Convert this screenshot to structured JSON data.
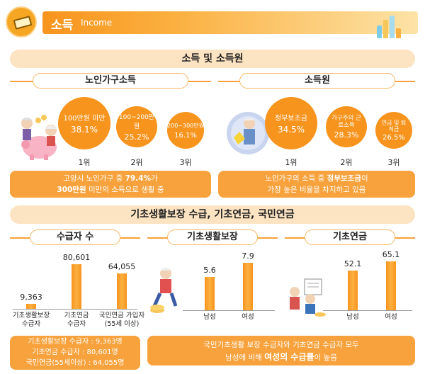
{
  "header": {
    "title": "소득",
    "subtitle": "Income"
  },
  "section1": {
    "title": "소득 및 소득원",
    "household_income": {
      "title": "노인가구소득",
      "items": [
        {
          "label": "100만원 미만",
          "value": "38.1%",
          "rank": "1위"
        },
        {
          "label": "100~200만원",
          "value": "25.2%",
          "rank": "2위"
        },
        {
          "label": "200~300만원",
          "value": "16.1%",
          "rank": "3위"
        }
      ],
      "note_line1_prefix": "고양시 노인가구 중 ",
      "note_line1_value": "79.4%",
      "note_line1_suffix": "가",
      "note_line2_value": "300만원",
      "note_line2_suffix": " 미만의 소득으로 생활 중"
    },
    "income_source": {
      "title": "소득원",
      "items": [
        {
          "label": "정부보조금",
          "value": "34.5%",
          "rank": "1위"
        },
        {
          "label": "가구주의 근로소득",
          "value": "28.3%",
          "rank": "2위"
        },
        {
          "label": "연금 및 퇴직금",
          "value": "26.5%",
          "rank": "3위"
        }
      ],
      "note_line1_prefix": "노인가구의 소득 중 ",
      "note_line1_value": "정부보조금",
      "note_line1_suffix": "이",
      "note_line2": "가장 높은 비율을 차지하고 있음"
    }
  },
  "section2": {
    "title": "기초생활보장 수급, 기초연금, 국민연금",
    "recipients": {
      "title": "수급자 수",
      "bars": [
        {
          "value": "9,363",
          "label1": "기초생활보장",
          "label2": "수급자",
          "label3": ""
        },
        {
          "value": "80,601",
          "label1": "기초연금",
          "label2": "수급자",
          "label3": ""
        },
        {
          "value": "64,055",
          "label1": "국민연금 가입자",
          "label2": "(55세 이상)",
          "label3": ""
        }
      ],
      "note": [
        "기초생활보장 수급자 : 9,363명",
        "기초연금 수급자 : 80,601명",
        "국민연금(55세이상) : 64,055명"
      ]
    },
    "basic_living": {
      "title": "기초생활보장",
      "bars": [
        {
          "value": "5.6",
          "label": "남성"
        },
        {
          "value": "7.9",
          "label": "여성"
        }
      ]
    },
    "basic_pension": {
      "title": "기초연금",
      "bars": [
        {
          "value": "52.1",
          "label": "남성"
        },
        {
          "value": "65.1",
          "label": "여성"
        }
      ]
    },
    "note2_line1": "국민기초생활 보장 수급자와 기초연금 수급자 모두",
    "note2_line2_prefix": "남성에 비해 ",
    "note2_line2_value": "여성의 수급률",
    "note2_line2_suffix": "이 높음"
  },
  "chart_data": [
    {
      "type": "bar",
      "title": "수급자 수",
      "categories": [
        "기초생활보장 수급자",
        "기초연금 수급자",
        "국민연금 가입자 (55세 이상)"
      ],
      "values": [
        9363,
        80601,
        64055
      ],
      "ylim": [
        0,
        90000
      ]
    },
    {
      "type": "bar",
      "title": "기초생활보장",
      "categories": [
        "남성",
        "여성"
      ],
      "values": [
        5.6,
        7.9
      ],
      "ylim": [
        0,
        9
      ]
    },
    {
      "type": "bar",
      "title": "기초연금",
      "categories": [
        "남성",
        "여성"
      ],
      "values": [
        52.1,
        65.1
      ],
      "ylim": [
        0,
        75
      ]
    }
  ],
  "colors": {
    "accent": "#f7941d",
    "light": "#fce3c2",
    "bar": "#fbb040"
  }
}
